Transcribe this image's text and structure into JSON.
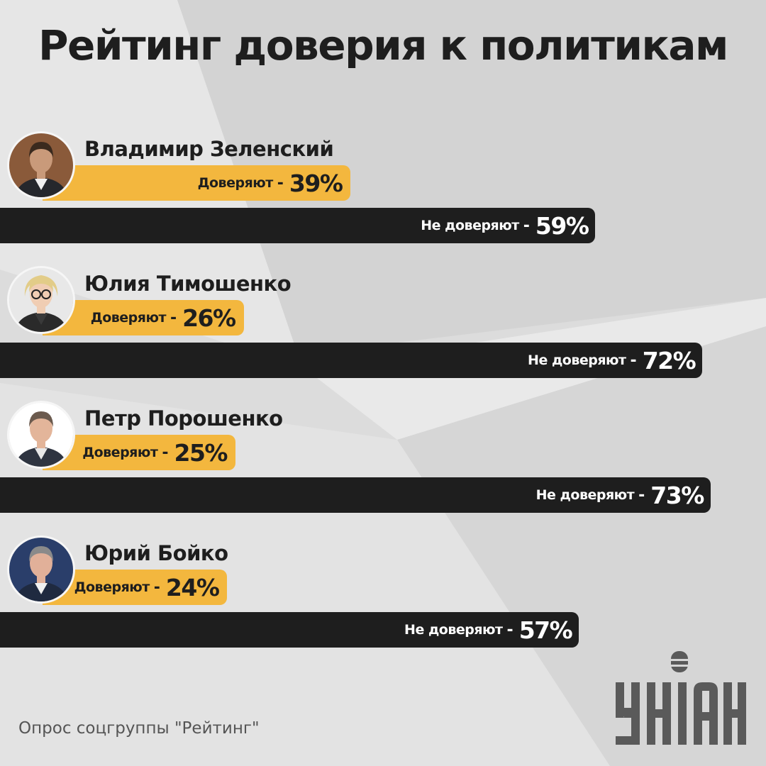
{
  "title": "Рейтинг доверия к политикам",
  "source": "Опрос соцгруппы \"Рейтинг\"",
  "logo": "УНІАН",
  "colors": {
    "trust": "#f3b73e",
    "distrust": "#1e1e1e",
    "text": "#1e1e1e",
    "background": "#dedede"
  },
  "chart_data": {
    "type": "bar",
    "orientation": "horizontal",
    "title": "Рейтинг доверия к политикам",
    "categories": [
      "Владимир Зеленский",
      "Юлия Тимошенко",
      "Петр Порошенко",
      "Юрий Бойко"
    ],
    "series": [
      {
        "name": "Доверяют",
        "values": [
          39,
          26,
          25,
          24
        ],
        "labels": [
          "39%",
          "26%",
          "25%",
          "24%"
        ]
      },
      {
        "name": "Не доверяют",
        "values": [
          59,
          72,
          73,
          57
        ],
        "labels": [
          "59%",
          "72%",
          "73%",
          "57%"
        ]
      }
    ],
    "unit": "%",
    "xlim": [
      0,
      100
    ]
  }
}
